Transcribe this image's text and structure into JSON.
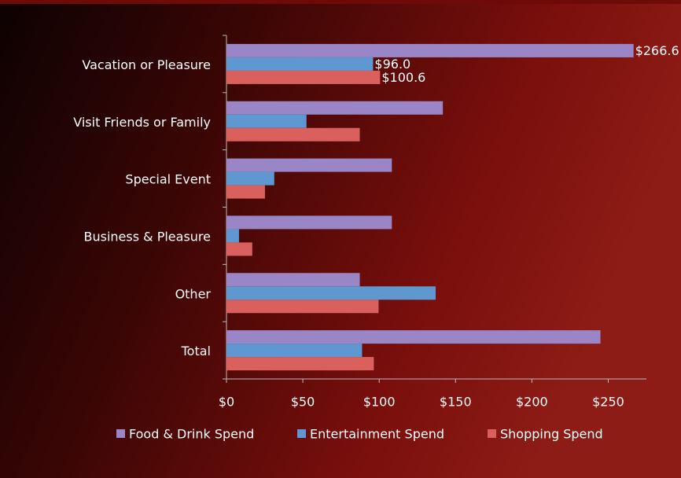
{
  "chart_data": {
    "type": "hbar",
    "categories": [
      "Vacation or Pleasure",
      "Visit Friends or Family",
      "Special Event",
      "Business & Pleasure",
      "Other",
      "Total"
    ],
    "series": [
      {
        "name": "Food & Drink Spend",
        "color": "#9a86c6",
        "values": [
          266.6,
          141.7,
          108.3,
          108.3,
          87.3,
          244.9
        ],
        "value_labels": [
          "$266.6",
          null,
          null,
          null,
          null,
          null
        ]
      },
      {
        "name": "Entertainment Spend",
        "color": "#5f98d1",
        "values": [
          96.0,
          52.4,
          31.3,
          8.2,
          137.0,
          88.8
        ],
        "value_labels": [
          "$96.0",
          null,
          null,
          null,
          null,
          null
        ]
      },
      {
        "name": "Shopping Spend",
        "color": "#d9605c",
        "values": [
          100.6,
          87.3,
          25.2,
          16.9,
          99.6,
          96.5
        ],
        "value_labels": [
          "$100.6",
          null,
          null,
          null,
          null,
          null
        ]
      }
    ],
    "xlim": [
      0,
      275
    ],
    "xticks": [
      {
        "value": 0,
        "label": "$0"
      },
      {
        "value": 50,
        "label": "$50"
      },
      {
        "value": 100,
        "label": "$100"
      },
      {
        "value": 150,
        "label": "$150"
      },
      {
        "value": 200,
        "label": "$200"
      },
      {
        "value": 250,
        "label": "$250"
      }
    ],
    "legend": "bottom"
  }
}
